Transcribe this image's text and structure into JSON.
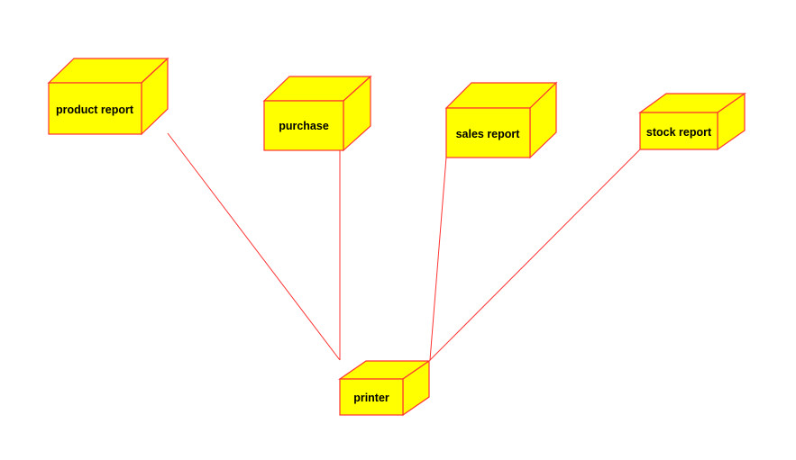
{
  "diagram": {
    "colors": {
      "node_fill": "#ffff00",
      "node_stroke": "#ff3333",
      "connector": "#ff3333",
      "background": "#ffffff"
    },
    "nodes": {
      "product_report": {
        "label": "product report"
      },
      "purchase": {
        "label": "purchase"
      },
      "sales_report": {
        "label": "sales report"
      },
      "stock_report": {
        "label": "stock report"
      },
      "printer": {
        "label": "printer"
      }
    }
  }
}
